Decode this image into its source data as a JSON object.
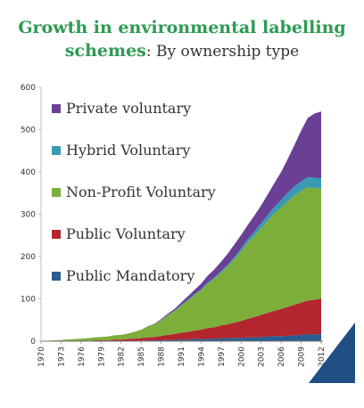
{
  "title": {
    "line1": "Growth in environmental labelling",
    "line2_green": "schemes",
    "line2_rest": ": By ownership type"
  },
  "chart_data": {
    "type": "area",
    "stacked": true,
    "x": [
      1970,
      1971,
      1972,
      1973,
      1974,
      1975,
      1976,
      1977,
      1978,
      1979,
      1980,
      1981,
      1982,
      1983,
      1984,
      1985,
      1986,
      1987,
      1988,
      1989,
      1990,
      1991,
      1992,
      1993,
      1994,
      1995,
      1996,
      1997,
      1998,
      1999,
      2000,
      2001,
      2002,
      2003,
      2004,
      2005,
      2006,
      2007,
      2008,
      2009,
      2010,
      2011,
      2012
    ],
    "x_ticks": [
      "1970",
      "1973",
      "1976",
      "1979",
      "1982",
      "1985",
      "1988",
      "1991",
      "1994",
      "1997",
      "2000",
      "2003",
      "2006",
      "2009",
      "2012"
    ],
    "ylim": [
      0,
      600
    ],
    "y_ticks": [
      0,
      100,
      200,
      300,
      400,
      500,
      600
    ],
    "legend_position": "left-inside",
    "grid": false,
    "series": [
      {
        "name": "Public Mandatory",
        "color": "#2b5c8f",
        "values": [
          0,
          0,
          0,
          0,
          0,
          0,
          0,
          0,
          0,
          0,
          0,
          1,
          1,
          1,
          1,
          1,
          2,
          2,
          2,
          3,
          3,
          4,
          4,
          5,
          5,
          6,
          6,
          7,
          7,
          8,
          8,
          9,
          9,
          10,
          11,
          12,
          12,
          13,
          14,
          15,
          16,
          16,
          17
        ]
      },
      {
        "name": "Public Voluntary",
        "color": "#b3262d",
        "values": [
          0,
          0,
          0,
          0,
          1,
          1,
          1,
          1,
          2,
          2,
          2,
          3,
          3,
          4,
          5,
          6,
          7,
          8,
          10,
          12,
          14,
          16,
          18,
          20,
          22,
          25,
          27,
          30,
          33,
          36,
          40,
          44,
          48,
          52,
          56,
          60,
          64,
          68,
          72,
          76,
          80,
          82,
          84
        ]
      },
      {
        "name": "Non-Profit Voluntary",
        "color": "#7dae3a",
        "values": [
          1,
          1,
          2,
          3,
          3,
          4,
          5,
          6,
          7,
          8,
          9,
          10,
          11,
          13,
          16,
          20,
          25,
          30,
          38,
          46,
          54,
          64,
          74,
          84,
          94,
          105,
          115,
          125,
          137,
          150,
          165,
          180,
          192,
          205,
          218,
          230,
          240,
          250,
          258,
          264,
          268,
          264,
          260
        ]
      },
      {
        "name": "Hybrid Voluntary",
        "color": "#3a9ab3",
        "values": [
          0,
          0,
          0,
          0,
          0,
          0,
          0,
          0,
          0,
          0,
          0,
          0,
          0,
          0,
          0,
          0,
          0,
          0,
          0,
          1,
          1,
          1,
          2,
          2,
          2,
          3,
          3,
          4,
          4,
          5,
          6,
          8,
          10,
          12,
          14,
          16,
          18,
          20,
          22,
          23,
          24,
          24,
          24
        ]
      },
      {
        "name": "Private voluntary",
        "color": "#6a3f96",
        "values": [
          0,
          0,
          0,
          0,
          0,
          0,
          0,
          0,
          0,
          0,
          0,
          0,
          0,
          0,
          0,
          0,
          1,
          1,
          2,
          3,
          4,
          6,
          8,
          10,
          13,
          16,
          19,
          22,
          26,
          30,
          32,
          34,
          38,
          42,
          48,
          56,
          66,
          80,
          98,
          120,
          140,
          152,
          158
        ]
      }
    ],
    "legend_order": [
      "Private voluntary",
      "Hybrid Voluntary",
      "Non-Profit Voluntary",
      "Public Voluntary",
      "Public Mandatory"
    ],
    "corner_shape_color": "#1f4e85"
  }
}
